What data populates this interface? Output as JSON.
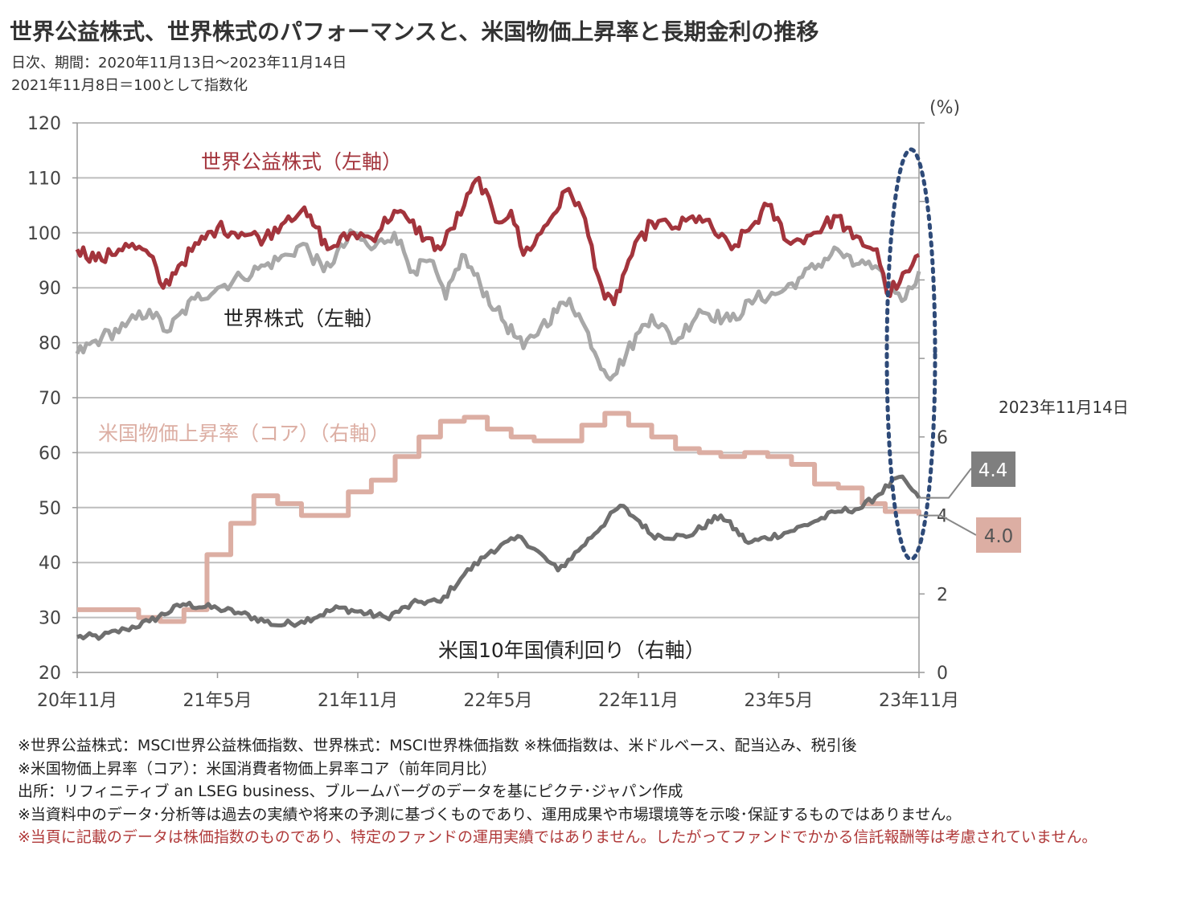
{
  "title": "世界公益株式、世界株式のパフォーマンスと、米国物価上昇率と長期金利の推移",
  "subtitle1": "日次、期間：2020年11月13日～2023年11月14日",
  "subtitle2": "2021年11月8日＝100として指数化",
  "colors": {
    "utility_equity": "#a3343c",
    "world_equity": "#a8a8a8",
    "cpi": "#dcaea3",
    "yield": "#6f6f6f",
    "ellipse": "#2e4a78",
    "grid": "#bdbdbd"
  },
  "chart_data": {
    "type": "line",
    "x_ticks": [
      "20年11月",
      "21年5月",
      "21年11月",
      "22年5月",
      "22年11月",
      "23年5月",
      "23年11月"
    ],
    "left_axis": {
      "range": [
        20,
        120
      ],
      "ticks": [
        20,
        30,
        40,
        50,
        60,
        70,
        80,
        90,
        100,
        110,
        120
      ]
    },
    "right_axis": {
      "range": [
        0,
        14
      ],
      "ticks": [
        0,
        2,
        4,
        6
      ],
      "unit": "(%)"
    },
    "date_annotation": "2023年11月14日",
    "series": [
      {
        "name": "世界公益株式（左軸）",
        "axis": "left",
        "points": [
          [
            "2020-11-13",
            97
          ],
          [
            "2020-12-15",
            95
          ],
          [
            "2021-01-15",
            98
          ],
          [
            "2021-02-15",
            96
          ],
          [
            "2021-03-05",
            90
          ],
          [
            "2021-03-25",
            94
          ],
          [
            "2021-04-20",
            98
          ],
          [
            "2021-05-15",
            101
          ],
          [
            "2021-06-15",
            100
          ],
          [
            "2021-07-15",
            99
          ],
          [
            "2021-08-15",
            103
          ],
          [
            "2021-09-01",
            104
          ],
          [
            "2021-09-20",
            101
          ],
          [
            "2021-10-05",
            97
          ],
          [
            "2021-11-08",
            100
          ],
          [
            "2021-12-01",
            99
          ],
          [
            "2021-12-31",
            104
          ],
          [
            "2022-01-20",
            102
          ],
          [
            "2022-02-10",
            99
          ],
          [
            "2022-03-01",
            97
          ],
          [
            "2022-04-01",
            105
          ],
          [
            "2022-04-20",
            110
          ],
          [
            "2022-05-12",
            102
          ],
          [
            "2022-06-01",
            104
          ],
          [
            "2022-06-17",
            96
          ],
          [
            "2022-07-10",
            100
          ],
          [
            "2022-08-15",
            108
          ],
          [
            "2022-09-01",
            104
          ],
          [
            "2022-10-01",
            88
          ],
          [
            "2022-10-13",
            87
          ],
          [
            "2022-11-01",
            95
          ],
          [
            "2022-12-01",
            102
          ],
          [
            "2023-01-01",
            101
          ],
          [
            "2023-02-01",
            103
          ],
          [
            "2023-03-15",
            97
          ],
          [
            "2023-04-15",
            102
          ],
          [
            "2023-05-01",
            105
          ],
          [
            "2023-05-31",
            98
          ],
          [
            "2023-06-30",
            100
          ],
          [
            "2023-07-31",
            103
          ],
          [
            "2023-08-20",
            99
          ],
          [
            "2023-09-20",
            97
          ],
          [
            "2023-10-03",
            89
          ],
          [
            "2023-10-20",
            91
          ],
          [
            "2023-11-01",
            93
          ],
          [
            "2023-11-14",
            96
          ]
        ]
      },
      {
        "name": "世界株式（左軸）",
        "axis": "left",
        "points": [
          [
            "2020-11-13",
            78
          ],
          [
            "2020-12-15",
            81
          ],
          [
            "2021-01-15",
            83
          ],
          [
            "2021-02-15",
            86
          ],
          [
            "2021-03-10",
            82
          ],
          [
            "2021-04-15",
            88
          ],
          [
            "2021-05-15",
            90
          ],
          [
            "2021-06-15",
            92
          ],
          [
            "2021-07-15",
            94
          ],
          [
            "2021-08-15",
            96
          ],
          [
            "2021-09-03",
            98
          ],
          [
            "2021-09-30",
            93
          ],
          [
            "2021-11-08",
            100
          ],
          [
            "2021-12-01",
            97
          ],
          [
            "2021-12-31",
            100
          ],
          [
            "2022-01-25",
            93
          ],
          [
            "2022-02-15",
            95
          ],
          [
            "2022-03-08",
            88
          ],
          [
            "2022-03-29",
            96
          ],
          [
            "2022-05-12",
            86
          ],
          [
            "2022-06-17",
            79
          ],
          [
            "2022-07-10",
            83
          ],
          [
            "2022-08-16",
            88
          ],
          [
            "2022-09-01",
            84
          ],
          [
            "2022-09-30",
            75
          ],
          [
            "2022-10-12",
            74
          ],
          [
            "2022-11-15",
            82
          ],
          [
            "2022-12-01",
            85
          ],
          [
            "2023-01-01",
            80
          ],
          [
            "2023-02-01",
            86
          ],
          [
            "2023-03-13",
            84
          ],
          [
            "2023-04-15",
            88
          ],
          [
            "2023-05-15",
            89
          ],
          [
            "2023-06-15",
            92
          ],
          [
            "2023-07-31",
            97
          ],
          [
            "2023-08-20",
            94
          ],
          [
            "2023-09-01",
            95
          ],
          [
            "2023-10-27",
            88
          ],
          [
            "2023-11-14",
            93
          ]
        ]
      },
      {
        "name": "米国物価上昇率（コア）（右軸）",
        "axis": "right",
        "step": true,
        "points": [
          [
            "2020-11-13",
            1.6
          ],
          [
            "2021-01-01",
            1.6
          ],
          [
            "2021-02-01",
            1.4
          ],
          [
            "2021-03-01",
            1.3
          ],
          [
            "2021-04-01",
            1.6
          ],
          [
            "2021-05-01",
            3.0
          ],
          [
            "2021-06-01",
            3.8
          ],
          [
            "2021-07-01",
            4.5
          ],
          [
            "2021-08-01",
            4.3
          ],
          [
            "2021-09-01",
            4.0
          ],
          [
            "2021-10-01",
            4.0
          ],
          [
            "2021-11-01",
            4.6
          ],
          [
            "2021-12-01",
            4.9
          ],
          [
            "2022-01-01",
            5.5
          ],
          [
            "2022-02-01",
            6.0
          ],
          [
            "2022-03-01",
            6.4
          ],
          [
            "2022-04-01",
            6.5
          ],
          [
            "2022-05-01",
            6.2
          ],
          [
            "2022-06-01",
            6.0
          ],
          [
            "2022-07-01",
            5.9
          ],
          [
            "2022-08-01",
            5.9
          ],
          [
            "2022-09-01",
            6.3
          ],
          [
            "2022-10-01",
            6.6
          ],
          [
            "2022-11-01",
            6.3
          ],
          [
            "2022-12-01",
            6.0
          ],
          [
            "2023-01-01",
            5.7
          ],
          [
            "2023-02-01",
            5.6
          ],
          [
            "2023-03-01",
            5.5
          ],
          [
            "2023-04-01",
            5.6
          ],
          [
            "2023-05-01",
            5.5
          ],
          [
            "2023-06-01",
            5.3
          ],
          [
            "2023-07-01",
            4.8
          ],
          [
            "2023-08-01",
            4.7
          ],
          [
            "2023-09-01",
            4.3
          ],
          [
            "2023-10-01",
            4.1
          ],
          [
            "2023-11-14",
            4.0
          ]
        ]
      },
      {
        "name": "米国10年国債利回り（右軸）",
        "axis": "right",
        "points": [
          [
            "2020-11-13",
            0.9
          ],
          [
            "2020-12-15",
            0.92
          ],
          [
            "2021-01-15",
            1.1
          ],
          [
            "2021-02-15",
            1.3
          ],
          [
            "2021-03-31",
            1.74
          ],
          [
            "2021-05-15",
            1.63
          ],
          [
            "2021-06-15",
            1.5
          ],
          [
            "2021-08-01",
            1.2
          ],
          [
            "2021-09-01",
            1.3
          ],
          [
            "2021-10-20",
            1.65
          ],
          [
            "2021-12-20",
            1.4
          ],
          [
            "2022-01-31",
            1.8
          ],
          [
            "2022-03-01",
            1.8
          ],
          [
            "2022-04-01",
            2.5
          ],
          [
            "2022-05-06",
            3.1
          ],
          [
            "2022-06-14",
            3.45
          ],
          [
            "2022-08-01",
            2.6
          ],
          [
            "2022-09-01",
            3.2
          ],
          [
            "2022-10-21",
            4.25
          ],
          [
            "2022-11-15",
            3.85
          ],
          [
            "2022-12-01",
            3.5
          ],
          [
            "2023-01-15",
            3.45
          ],
          [
            "2023-03-01",
            4.0
          ],
          [
            "2023-04-06",
            3.3
          ],
          [
            "2023-05-31",
            3.6
          ],
          [
            "2023-07-01",
            3.85
          ],
          [
            "2023-08-01",
            4.1
          ],
          [
            "2023-09-01",
            4.2
          ],
          [
            "2023-10-19",
            4.98
          ],
          [
            "2023-11-01",
            4.75
          ],
          [
            "2023-11-14",
            4.45
          ]
        ]
      }
    ],
    "end_labels": [
      {
        "series": "米国10年国債利回り（右軸）",
        "text": "4.4"
      },
      {
        "series": "米国物価上昇率（コア）（右軸）",
        "text": "4.0"
      }
    ]
  },
  "notes": [
    "※世界公益株式：MSCI世界公益株価指数、世界株式：MSCI世界株価指数 ※株価指数は、米ドルベース、配当込み、税引後",
    "※米国物価上昇率（コア）：米国消費者物価上昇率コア（前年同月比）",
    "出所：リフィニティブ an LSEG business、ブルームバーグのデータを基にピクテ･ジャパン作成",
    "※当資料中のデータ･分析等は過去の実績や将来の予測に基づくものであり、運用成果や市場環境等を示唆･保証するものではありません。"
  ],
  "disclaimer": "※当頁に記載のデータは株価指数のものであり、特定のファンドの運用実績ではありません。したがってファンドでかかる信託報酬等は考慮されていません。"
}
